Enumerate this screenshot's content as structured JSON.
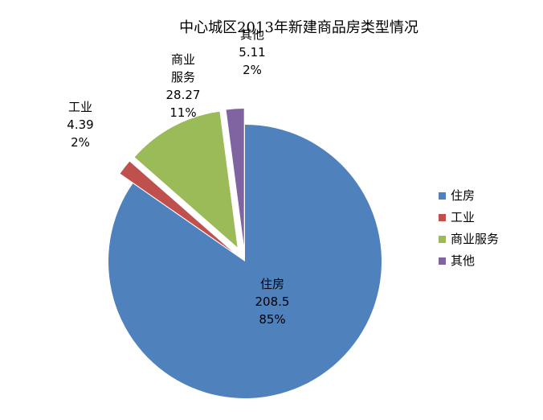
{
  "chart_data": {
    "type": "pie",
    "title": "中心城区2013年新建商品房类型情况",
    "exploded": true,
    "legend_position": "right",
    "slices": [
      {
        "name": "住房",
        "value": 208.5,
        "percent_label": "85%",
        "color": "#4F81BD"
      },
      {
        "name": "工业",
        "value": 4.39,
        "percent_label": "2%",
        "color": "#C0504D"
      },
      {
        "name": "商业服务",
        "value": 28.27,
        "percent_label": "11%",
        "color": "#9BBB59"
      },
      {
        "name": "其他",
        "value": 5.11,
        "percent_label": "2%",
        "color": "#8064A2"
      }
    ],
    "value_labels": [
      "208.5",
      "4.39",
      "28.27",
      "5.11"
    ]
  }
}
